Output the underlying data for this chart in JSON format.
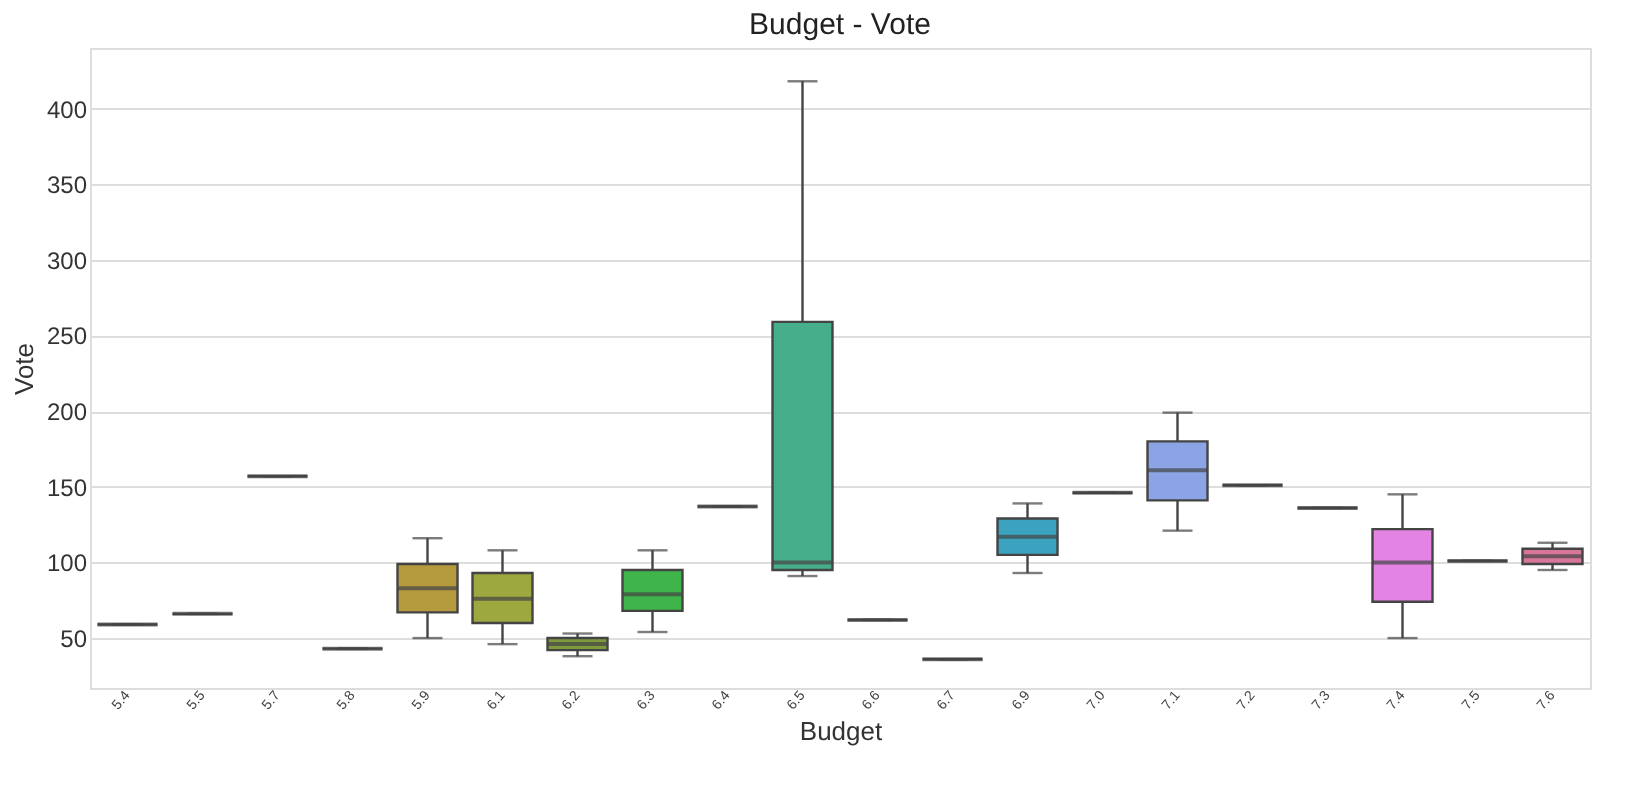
{
  "chart_data": {
    "type": "box",
    "title": "Budget - Vote",
    "xlabel": "Budget",
    "ylabel": "Vote",
    "categories": [
      "5.4",
      "5.5",
      "5.7",
      "5.8",
      "5.9",
      "6.1",
      "6.2",
      "6.3",
      "6.4",
      "6.5",
      "6.6",
      "6.7",
      "6.9",
      "7.0",
      "7.1",
      "7.2",
      "7.3",
      "7.4",
      "7.5",
      "7.6"
    ],
    "colors": [
      "#444444",
      "#444444",
      "#444444",
      "#444444",
      "#b59a3e",
      "#9da93e",
      "#7d9a3d",
      "#3fb44b",
      "#444444",
      "#47ae8c",
      "#444444",
      "#444444",
      "#3ba3c0",
      "#444444",
      "#8ba4e6",
      "#444444",
      "#444444",
      "#e383e3",
      "#444444",
      "#d7769a"
    ],
    "boxes": [
      {
        "low": 59,
        "q1": 59,
        "median": 59,
        "q3": 59,
        "high": 59
      },
      {
        "low": 66,
        "q1": 66,
        "median": 66,
        "q3": 66,
        "high": 66
      },
      {
        "low": 157,
        "q1": 157,
        "median": 157,
        "q3": 157,
        "high": 157
      },
      {
        "low": 43,
        "q1": 43,
        "median": 43,
        "q3": 43,
        "high": 43
      },
      {
        "low": 50,
        "q1": 67,
        "median": 83,
        "q3": 99,
        "high": 116
      },
      {
        "low": 46,
        "q1": 60,
        "median": 76,
        "q3": 93,
        "high": 108
      },
      {
        "low": 38,
        "q1": 42,
        "median": 46,
        "q3": 50,
        "high": 53
      },
      {
        "low": 54,
        "q1": 68,
        "median": 79,
        "q3": 95,
        "high": 108
      },
      {
        "low": 137,
        "q1": 137,
        "median": 137,
        "q3": 137,
        "high": 137
      },
      {
        "low": 91,
        "q1": 95,
        "median": 100,
        "q3": 259,
        "high": 418
      },
      {
        "low": 62,
        "q1": 62,
        "median": 62,
        "q3": 62,
        "high": 62
      },
      {
        "low": 36,
        "q1": 36,
        "median": 36,
        "q3": 36,
        "high": 36
      },
      {
        "low": 93,
        "q1": 105,
        "median": 117,
        "q3": 129,
        "high": 139
      },
      {
        "low": 146,
        "q1": 146,
        "median": 146,
        "q3": 146,
        "high": 146
      },
      {
        "low": 121,
        "q1": 141,
        "median": 161,
        "q3": 180,
        "high": 199
      },
      {
        "low": 151,
        "q1": 151,
        "median": 151,
        "q3": 151,
        "high": 151
      },
      {
        "low": 136,
        "q1": 136,
        "median": 136,
        "q3": 136,
        "high": 136
      },
      {
        "low": 50,
        "q1": 74,
        "median": 100,
        "q3": 122,
        "high": 145
      },
      {
        "low": 101,
        "q1": 101,
        "median": 101,
        "q3": 101,
        "high": 101
      },
      {
        "low": 95,
        "q1": 99,
        "median": 104,
        "q3": 109,
        "high": 113
      }
    ],
    "ylim": [
      17,
      440
    ],
    "yticks": [
      50,
      100,
      150,
      200,
      250,
      300,
      350,
      400
    ],
    "grid": "y",
    "legend": false
  }
}
